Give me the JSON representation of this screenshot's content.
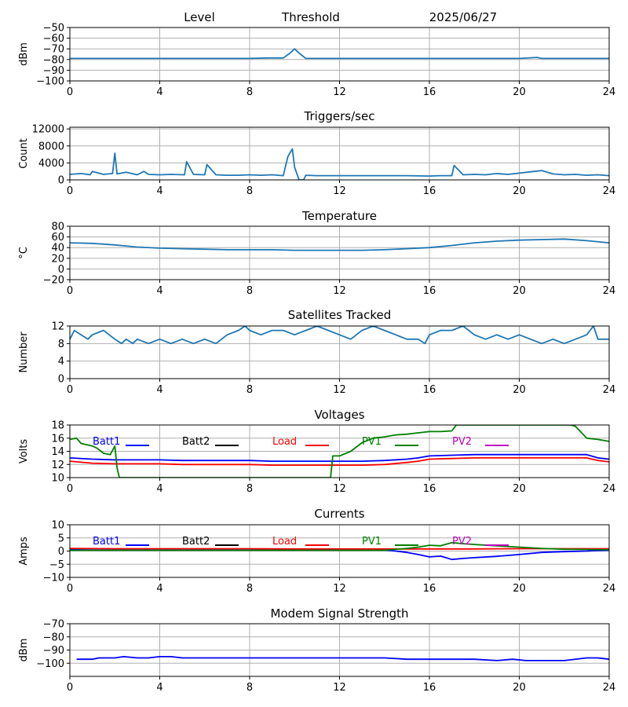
{
  "header": {
    "title_level": "Level",
    "title_threshold": "Threshold",
    "date": "2025/06/27"
  },
  "x_ticks": [
    "0",
    "4",
    "8",
    "12",
    "16",
    "20",
    "24"
  ],
  "chart_data": [
    {
      "type": "line",
      "title": "",
      "ylabel": "dBm",
      "xlim": [
        0,
        24
      ],
      "ylim": [
        -100,
        -50
      ],
      "yticks": [
        -50,
        -60,
        -70,
        -80,
        -90,
        -100
      ],
      "grid": true,
      "series": [
        {
          "color": "#1f77b4",
          "x": [
            0,
            1,
            2,
            3,
            4,
            5,
            6,
            7,
            8,
            8.8,
            9.5,
            9.8,
            10.0,
            10.2,
            10.5,
            11,
            12,
            13,
            14,
            15,
            16,
            17,
            18,
            19,
            20,
            20.8,
            21,
            22,
            23,
            24
          ],
          "y": [
            -79,
            -79,
            -79,
            -79,
            -79,
            -79,
            -79,
            -79,
            -79,
            -78.5,
            -78.5,
            -74,
            -70,
            -74,
            -79,
            -79,
            -79,
            -79,
            -79,
            -79,
            -79,
            -79,
            -79,
            -79,
            -79,
            -78,
            -79,
            -79,
            -79,
            -79
          ]
        }
      ]
    },
    {
      "type": "line",
      "title": "Triggers/sec",
      "ylabel": "Count",
      "xlim": [
        0,
        24
      ],
      "ylim": [
        0,
        12400
      ],
      "yticks": [
        0,
        4000,
        8000,
        12000
      ],
      "grid": true,
      "series": [
        {
          "color": "#1f77b4",
          "x": [
            0,
            0.5,
            0.9,
            1.0,
            1.5,
            1.9,
            2.0,
            2.1,
            2.5,
            3.0,
            3.3,
            3.5,
            4.0,
            4.5,
            5.1,
            5.2,
            5.5,
            6.0,
            6.1,
            6.5,
            7.0,
            7.5,
            8.0,
            8.5,
            9.0,
            9.5,
            9.7,
            9.9,
            10.0,
            10.2,
            10.4,
            10.5,
            11.0,
            12.0,
            13.0,
            14.0,
            15.0,
            16.0,
            16.5,
            17.0,
            17.1,
            17.5,
            18.0,
            18.5,
            19.0,
            19.5,
            20.0,
            20.5,
            21.0,
            21.5,
            22.0,
            22.5,
            23.0,
            23.5,
            24.0
          ],
          "y": [
            1300,
            1500,
            1200,
            2000,
            1300,
            1500,
            6300,
            1400,
            1800,
            1200,
            2000,
            1300,
            1200,
            1300,
            1200,
            4300,
            1300,
            1200,
            3600,
            1200,
            1100,
            1100,
            1200,
            1100,
            1200,
            1000,
            5500,
            7300,
            3000,
            0,
            0,
            1100,
            1000,
            1000,
            1000,
            1000,
            1000,
            900,
            1000,
            1000,
            3400,
            1200,
            1300,
            1200,
            1500,
            1300,
            1600,
            1900,
            2200,
            1400,
            1200,
            1300,
            1100,
            1200,
            1000
          ]
        }
      ]
    },
    {
      "type": "line",
      "title": "Temperature",
      "ylabel": "°C",
      "xlim": [
        0,
        24
      ],
      "ylim": [
        -20,
        80
      ],
      "yticks": [
        -20,
        0,
        20,
        40,
        60,
        80
      ],
      "grid": true,
      "series": [
        {
          "color": "#1f77b4",
          "x": [
            0,
            1,
            2,
            3,
            4,
            5,
            6,
            7,
            8,
            9,
            10,
            11,
            12,
            13,
            14,
            15,
            16,
            17,
            18,
            19,
            20,
            21,
            22,
            23,
            24
          ],
          "y": [
            49,
            48,
            45,
            41,
            39,
            38,
            37,
            36,
            36,
            36,
            35,
            35,
            35,
            35,
            36,
            38,
            40,
            44,
            49,
            52,
            54,
            55,
            56,
            53,
            49
          ]
        }
      ]
    },
    {
      "type": "line",
      "title": "Satellites Tracked",
      "ylabel": "Number",
      "xlim": [
        0,
        24
      ],
      "ylim": [
        0,
        12
      ],
      "yticks": [
        0,
        4,
        8,
        12
      ],
      "grid": true,
      "series": [
        {
          "color": "#1f77b4",
          "x": [
            0,
            0.2,
            0.5,
            0.8,
            1.0,
            1.5,
            2.0,
            2.3,
            2.5,
            2.8,
            3.0,
            3.5,
            4.0,
            4.5,
            5.0,
            5.5,
            6.0,
            6.5,
            7.0,
            7.5,
            7.8,
            8.0,
            8.5,
            9.0,
            9.5,
            10.0,
            10.5,
            11.0,
            11.5,
            12.0,
            12.5,
            13.0,
            13.5,
            14.0,
            14.5,
            15.0,
            15.5,
            15.8,
            16.0,
            16.5,
            17.0,
            17.5,
            18.0,
            18.5,
            19.0,
            19.5,
            20.0,
            20.5,
            21.0,
            21.5,
            22.0,
            22.5,
            23.0,
            23.3,
            23.5,
            24.0
          ],
          "y": [
            9,
            11,
            10,
            9,
            10,
            11,
            9,
            8,
            9,
            8,
            9,
            8,
            9,
            8,
            9,
            8,
            9,
            8,
            10,
            11,
            12,
            11,
            10,
            11,
            11,
            10,
            11,
            12,
            11,
            10,
            9,
            11,
            12,
            11,
            10,
            9,
            9,
            8,
            10,
            11,
            11,
            12,
            10,
            9,
            10,
            9,
            10,
            9,
            8,
            9,
            8,
            9,
            10,
            12,
            9,
            9
          ]
        }
      ]
    },
    {
      "type": "line",
      "title": "Voltages",
      "ylabel": "Volts",
      "xlim": [
        0,
        24
      ],
      "ylim": [
        10,
        18
      ],
      "yticks": [
        10,
        12,
        14,
        16,
        18
      ],
      "grid": true,
      "legend": "top",
      "series": [
        {
          "name": "Batt1",
          "color": "#0000ff",
          "x": [
            0,
            1,
            2,
            3,
            4,
            5,
            6,
            7,
            8,
            9,
            10,
            11,
            12,
            13,
            14,
            15,
            15.5,
            16,
            17,
            18,
            19,
            20,
            21,
            22,
            23,
            23.5,
            24
          ],
          "y": [
            13.0,
            12.8,
            12.7,
            12.7,
            12.7,
            12.6,
            12.6,
            12.6,
            12.6,
            12.5,
            12.5,
            12.5,
            12.5,
            12.5,
            12.6,
            12.8,
            13.0,
            13.3,
            13.4,
            13.5,
            13.5,
            13.5,
            13.5,
            13.5,
            13.5,
            13.0,
            12.8
          ]
        },
        {
          "name": "Batt2",
          "color": "#000000",
          "x": [],
          "y": []
        },
        {
          "name": "Load",
          "color": "#ff0000",
          "x": [
            0,
            1,
            2,
            3,
            4,
            5,
            6,
            7,
            8,
            9,
            10,
            11,
            12,
            13,
            14,
            15,
            15.5,
            16,
            17,
            18,
            19,
            20,
            21,
            22,
            23,
            23.5,
            24
          ],
          "y": [
            12.5,
            12.2,
            12.1,
            12.1,
            12.1,
            12.0,
            12.0,
            12.0,
            12.0,
            11.9,
            11.9,
            11.9,
            11.9,
            11.9,
            12.0,
            12.3,
            12.5,
            12.8,
            12.9,
            13.0,
            13.0,
            13.0,
            13.0,
            13.0,
            13.0,
            12.6,
            12.4
          ]
        },
        {
          "name": "PV1",
          "color": "#008000",
          "x": [
            0,
            0.3,
            0.5,
            1.0,
            1.2,
            1.5,
            1.8,
            2.0,
            2.1,
            2.2,
            11.6,
            11.7,
            12.0,
            12.5,
            13.0,
            13.5,
            14.0,
            14.5,
            15.0,
            15.5,
            16.0,
            16.5,
            17.0,
            17.2,
            22.3,
            22.5,
            23.0,
            23.5,
            24.0
          ],
          "y": [
            15.8,
            16.0,
            15.2,
            14.8,
            14.5,
            13.7,
            13.5,
            14.8,
            11.5,
            10.0,
            10.0,
            13.3,
            13.3,
            14.0,
            15.3,
            16.0,
            16.2,
            16.5,
            16.6,
            16.8,
            17.0,
            17.0,
            17.1,
            18.0,
            18.0,
            17.8,
            16.0,
            15.8,
            15.5
          ]
        },
        {
          "name": "PV2",
          "color": "#bf00bf",
          "x": [],
          "y": []
        }
      ]
    },
    {
      "type": "line",
      "title": "Currents",
      "ylabel": "Amps",
      "xlim": [
        0,
        24
      ],
      "ylim": [
        -10,
        10
      ],
      "yticks": [
        -10,
        -5,
        0,
        5,
        10
      ],
      "grid": true,
      "legend": "top",
      "series": [
        {
          "name": "Batt1",
          "color": "#0000ff",
          "x": [
            0,
            1,
            2,
            3,
            4,
            5,
            6,
            7,
            8,
            9,
            10,
            11,
            12,
            13,
            14,
            14.5,
            15,
            15.5,
            16,
            16.5,
            17,
            17.5,
            18,
            19,
            20,
            21,
            22,
            23,
            23.5,
            24
          ],
          "y": [
            0.5,
            0.4,
            0.4,
            0.4,
            0.4,
            0.4,
            0.4,
            0.4,
            0.4,
            0.4,
            0.4,
            0.4,
            0.4,
            0.4,
            0.4,
            0,
            -0.5,
            -1.3,
            -2.2,
            -1.9,
            -3.2,
            -2.8,
            -2.5,
            -2.0,
            -1.3,
            -0.5,
            -0.2,
            0,
            0.2,
            0.3
          ]
        },
        {
          "name": "Batt2",
          "color": "#000000",
          "x": [],
          "y": []
        },
        {
          "name": "Load",
          "color": "#ff0000",
          "x": [
            0,
            2,
            4,
            6,
            8,
            10,
            12,
            14,
            16,
            18,
            20,
            22,
            24
          ],
          "y": [
            1.0,
            0.9,
            0.9,
            0.9,
            0.9,
            0.8,
            0.8,
            0.8,
            0.8,
            0.8,
            0.9,
            0.9,
            0.9
          ]
        },
        {
          "name": "PV1",
          "color": "#008000",
          "x": [
            0,
            2,
            4,
            6,
            8,
            10,
            12,
            14,
            15,
            15.5,
            16,
            16.5,
            17,
            17.5,
            18,
            19,
            20,
            21,
            22,
            23,
            24
          ],
          "y": [
            0.3,
            0.3,
            0.3,
            0.3,
            0.3,
            0.3,
            0.3,
            0.3,
            1.0,
            1.5,
            2.2,
            2.0,
            3.2,
            2.8,
            2.5,
            2.0,
            1.5,
            1.0,
            0.7,
            0.6,
            0.5
          ]
        },
        {
          "name": "PV2",
          "color": "#bf00bf",
          "x": [],
          "y": []
        }
      ]
    },
    {
      "type": "line",
      "title": "Modem Signal Strength",
      "ylabel": "dBm",
      "xlim": [
        0,
        24
      ],
      "ylim": [
        -110,
        -70
      ],
      "yticks": [
        -70,
        -80,
        -90,
        -100
      ],
      "grid": true,
      "series": [
        {
          "color": "#0000ff",
          "x": [
            0.3,
            1,
            1.3,
            2,
            2.4,
            3,
            3.5,
            4,
            4.5,
            5,
            6,
            8,
            10,
            12,
            14,
            15,
            16,
            17,
            18,
            19,
            19.7,
            20.3,
            21,
            22,
            23,
            23.5,
            24
          ],
          "y": [
            -97,
            -97,
            -96,
            -96,
            -95,
            -96,
            -96,
            -95,
            -95,
            -96,
            -96,
            -96,
            -96,
            -96,
            -96,
            -97,
            -97,
            -97,
            -97,
            -98,
            -97,
            -98,
            -98,
            -98,
            -96,
            -96,
            -97
          ]
        }
      ]
    }
  ]
}
